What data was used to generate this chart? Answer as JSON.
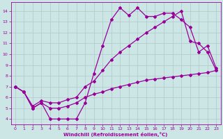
{
  "background_color": "#cce5e5",
  "grid_color": "#b0c8c8",
  "line_color": "#990099",
  "xlim": [
    -0.5,
    23.5
  ],
  "ylim": [
    3.5,
    14.8
  ],
  "xticks": [
    0,
    1,
    2,
    3,
    4,
    5,
    6,
    7,
    8,
    9,
    10,
    11,
    12,
    13,
    14,
    15,
    16,
    17,
    18,
    19,
    20,
    21,
    22,
    23
  ],
  "yticks": [
    4,
    5,
    6,
    7,
    8,
    9,
    10,
    11,
    12,
    13,
    14
  ],
  "xlabel": "Windchill (Refroidissement éolien,°C)",
  "line1_x": [
    0,
    1,
    2,
    3,
    4,
    5,
    6,
    7,
    8,
    9,
    10,
    11,
    12,
    13,
    14,
    15,
    16,
    17,
    18,
    19,
    20,
    21,
    22,
    23
  ],
  "line1_y": [
    7.0,
    6.5,
    5.0,
    5.5,
    4.0,
    4.0,
    4.0,
    4.0,
    5.5,
    8.2,
    10.8,
    13.2,
    14.3,
    13.6,
    14.3,
    13.5,
    13.5,
    13.8,
    13.8,
    13.2,
    12.5,
    10.2,
    10.8,
    8.7
  ],
  "line2_x": [
    0,
    1,
    2,
    3,
    4,
    5,
    6,
    7,
    8,
    9,
    10,
    11,
    12,
    13,
    14,
    15,
    16,
    17,
    18,
    19,
    20,
    21,
    22,
    23
  ],
  "line2_y": [
    7.0,
    6.5,
    5.2,
    5.7,
    5.5,
    5.5,
    5.8,
    6.0,
    7.0,
    7.5,
    8.5,
    9.5,
    10.2,
    10.8,
    11.4,
    12.0,
    12.5,
    13.0,
    13.5,
    14.0,
    11.2,
    11.0,
    10.2,
    8.5
  ],
  "line3_x": [
    0,
    1,
    2,
    3,
    4,
    5,
    6,
    7,
    8,
    9,
    10,
    11,
    12,
    13,
    14,
    15,
    16,
    17,
    18,
    19,
    20,
    21,
    22,
    23
  ],
  "line3_y": [
    7.0,
    6.5,
    5.0,
    5.5,
    5.0,
    5.0,
    5.2,
    5.5,
    6.0,
    6.3,
    6.5,
    6.8,
    7.0,
    7.2,
    7.4,
    7.6,
    7.7,
    7.8,
    7.9,
    8.0,
    8.1,
    8.2,
    8.3,
    8.5
  ],
  "marker": "D",
  "markersize": 2.0,
  "linewidth": 0.9
}
